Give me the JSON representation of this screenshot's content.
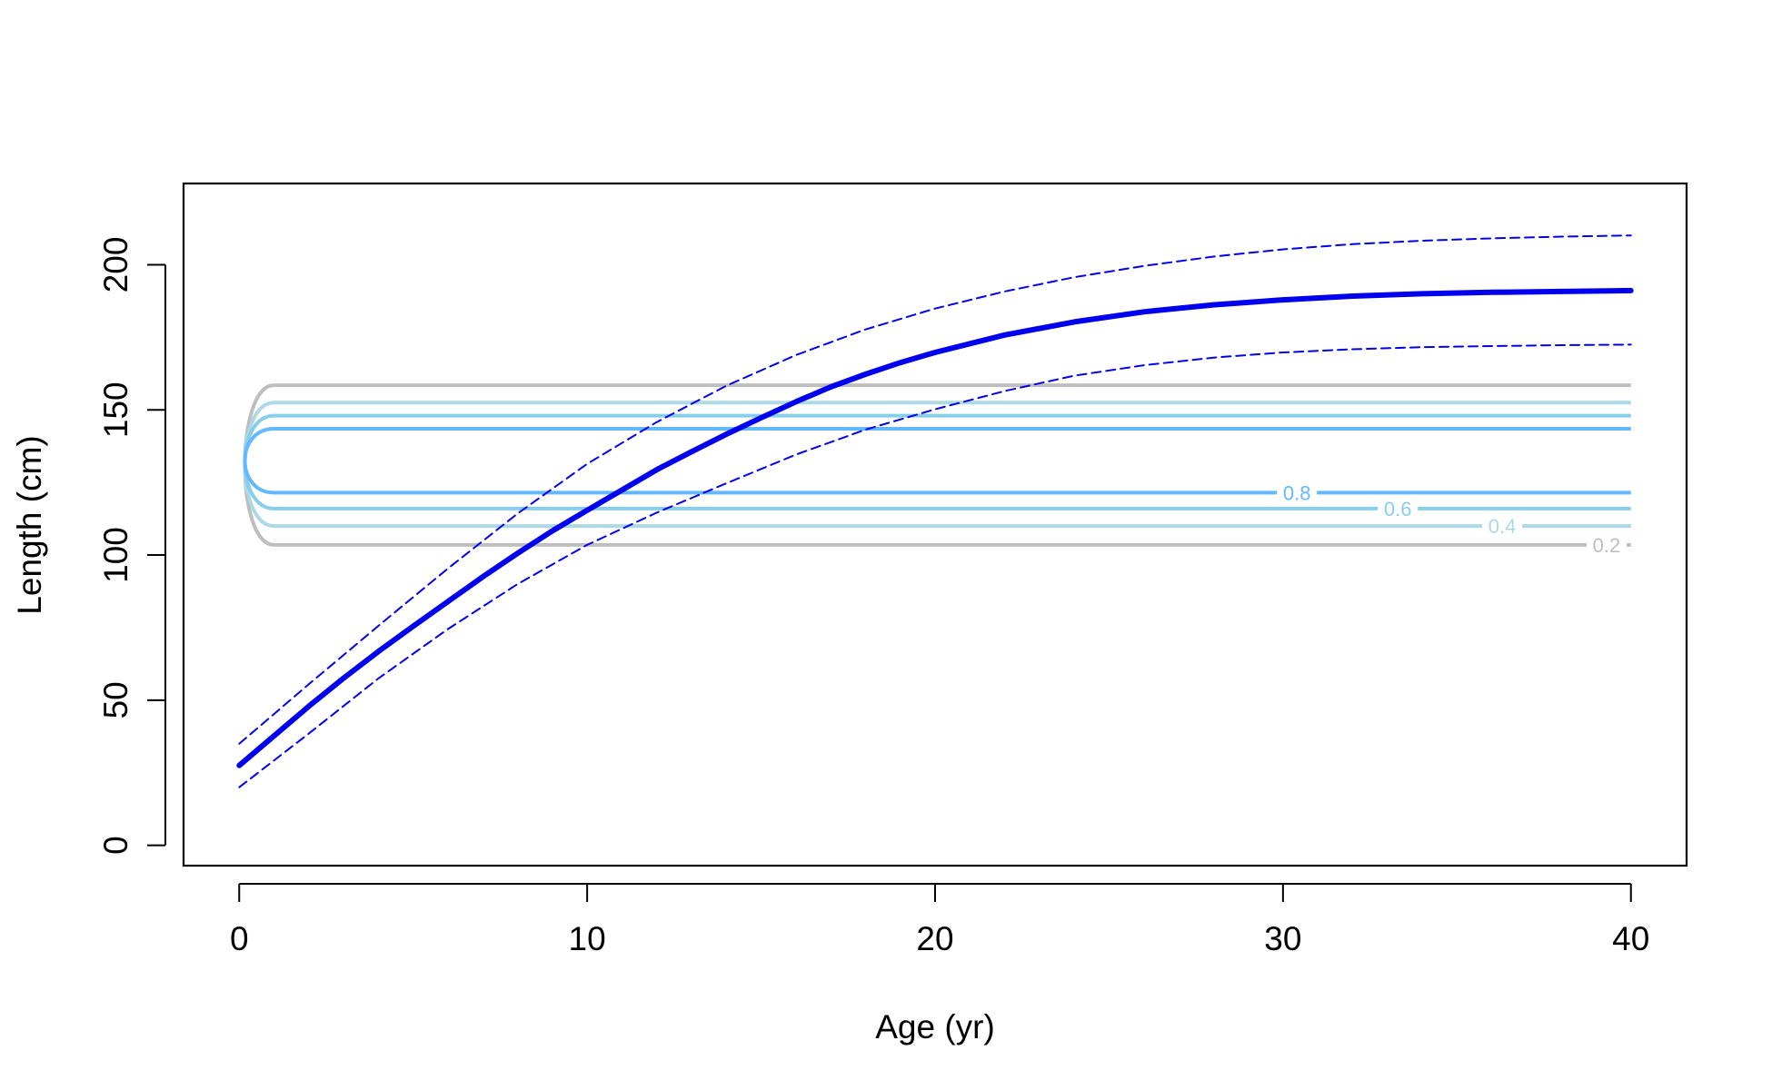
{
  "chart_data": {
    "type": "line",
    "title": "",
    "xlabel": "Age (yr)",
    "ylabel": "Length (cm)",
    "xlim": [
      -1.6,
      41.6
    ],
    "ylim": [
      -7,
      228
    ],
    "x_ticks": [
      0,
      10,
      20,
      30,
      40
    ],
    "y_ticks": [
      0,
      50,
      100,
      150,
      200
    ],
    "grid": false,
    "legend": "none",
    "series": [
      {
        "role": "mean",
        "color": "#0000ee",
        "style": "solid",
        "x": [
          0,
          1,
          2,
          3,
          4,
          5,
          6,
          7,
          8,
          9,
          10,
          11,
          12,
          13,
          14,
          15,
          16,
          17,
          18,
          19,
          20,
          22,
          24,
          26,
          28,
          30,
          32,
          34,
          36,
          38,
          40
        ],
        "y": [
          27.5,
          37.7,
          47.9,
          57.6,
          66.8,
          75.5,
          84.0,
          92.5,
          100.6,
          108.3,
          115.4,
          122.4,
          129.4,
          135.6,
          141.6,
          147.3,
          152.8,
          157.9,
          162.3,
          166.3,
          169.8,
          175.8,
          180.3,
          183.8,
          186.2,
          187.9,
          189.2,
          190.0,
          190.5,
          190.8,
          191.1
        ]
      },
      {
        "role": "upper-interval",
        "color": "#0000ee",
        "style": "dashed",
        "x": [
          0,
          2,
          4,
          6,
          8,
          10,
          12,
          14,
          16,
          18,
          20,
          22,
          24,
          26,
          28,
          30,
          32,
          34,
          36,
          38,
          40
        ],
        "y": [
          35.0,
          55.5,
          75.6,
          95.4,
          114.3,
          131.4,
          145.8,
          158.3,
          168.9,
          177.7,
          184.9,
          190.8,
          195.7,
          199.6,
          202.8,
          205.3,
          207.1,
          208.3,
          209.1,
          209.7,
          210.1
        ]
      },
      {
        "role": "lower-interval",
        "color": "#0000ee",
        "style": "dashed",
        "x": [
          0,
          2,
          4,
          6,
          8,
          10,
          12,
          14,
          16,
          18,
          20,
          22,
          24,
          26,
          28,
          30,
          32,
          34,
          36,
          38,
          40
        ],
        "y": [
          20.0,
          38.5,
          57.5,
          74.5,
          90.0,
          103.5,
          114.6,
          124.7,
          134.6,
          143.2,
          150.2,
          156.5,
          161.8,
          165.4,
          168.0,
          169.8,
          170.9,
          171.6,
          172.0,
          172.3,
          172.5
        ]
      }
    ],
    "contours": [
      {
        "level": "0.2",
        "color": "#bebebe",
        "y_low": 103.5,
        "y_high": 158.5,
        "x_start": 1,
        "x_end": 40,
        "label_x": 39.3
      },
      {
        "level": "0.4",
        "color": "#add8e6",
        "y_low": 110.0,
        "y_high": 152.5,
        "x_start": 1,
        "x_end": 40,
        "label_x": 36.3
      },
      {
        "level": "0.6",
        "color": "#87ceeb",
        "y_low": 116.0,
        "y_high": 148.0,
        "x_start": 1,
        "x_end": 40,
        "label_x": 33.3
      },
      {
        "level": "0.8",
        "color": "#63b8ff",
        "y_low": 121.5,
        "y_high": 143.5,
        "x_start": 1,
        "x_end": 40,
        "label_x": 30.4
      }
    ]
  }
}
